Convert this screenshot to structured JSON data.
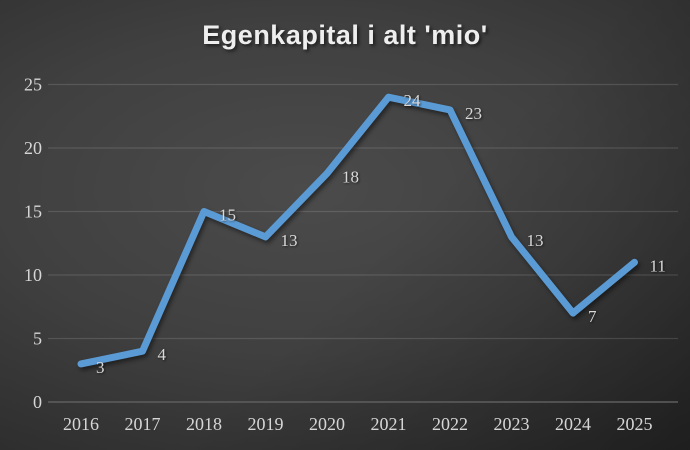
{
  "title": "Egenkapital i alt 'mio'",
  "colors": {
    "line": "#5B9BD5",
    "gridline": "rgba(255,255,255,0.13)",
    "axis_line": "#5e5e5e",
    "tick_label": "#d6d6d6",
    "data_label": "#d9d9d9",
    "title_text": "#eeeeee",
    "background_center": "#4b4b4b",
    "background_edge": "#232323"
  },
  "chart_data": {
    "type": "line",
    "title": "Egenkapital i alt 'mio'",
    "categories": [
      "2016",
      "2017",
      "2018",
      "2019",
      "2020",
      "2021",
      "2022",
      "2023",
      "2024",
      "2025"
    ],
    "values": [
      3,
      4,
      15,
      13,
      18,
      24,
      23,
      13,
      7,
      11
    ],
    "data_labels": [
      "3",
      "4",
      "15",
      "13",
      "18",
      "24",
      "23",
      "13",
      "7",
      "11"
    ],
    "xlabel": "",
    "ylabel": "",
    "ylim": [
      0,
      25
    ],
    "yticks": [
      0,
      5,
      10,
      15,
      20,
      25
    ],
    "grid": true,
    "legend": false
  }
}
